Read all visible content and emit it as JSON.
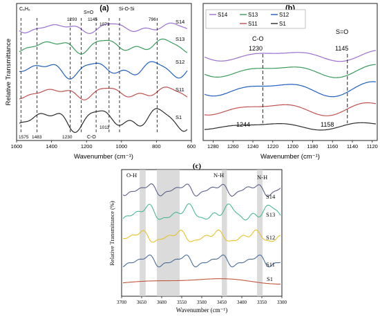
{
  "colors": {
    "S1": "#2b2b2b",
    "S11": "#c0504d",
    "S12": "#1f5fbf",
    "S13": "#3a9a5b",
    "S14": "#9a6fd0",
    "c_S1": "#c1573f",
    "c_S11": "#4a6b9a",
    "c_S12": "#e8c229",
    "c_S13": "#4ab894",
    "c_S14": "#5b5f8a",
    "band": "#cfcfcf"
  },
  "chart_data": [
    {
      "id": "a",
      "type": "line",
      "panel_label": "(a)",
      "xlabel": "Wavenumber (cm⁻¹)",
      "ylabel": "Relative Transmittance",
      "xlim": [
        1600,
        600
      ],
      "x_reversed": true,
      "x_ticks": [
        1600,
        1400,
        1200,
        1000,
        800,
        600
      ],
      "series": [
        {
          "name": "S1",
          "color_key": "S1"
        },
        {
          "name": "S11",
          "color_key": "S11"
        },
        {
          "name": "S12",
          "color_key": "S12"
        },
        {
          "name": "S13",
          "color_key": "S13"
        },
        {
          "name": "S14",
          "color_key": "S14"
        }
      ],
      "dashed_lines": [
        1575,
        1483,
        1293,
        1230,
        1145,
        1071,
        1011,
        796
      ],
      "annotations_top": [
        "C₆H₆",
        "1293",
        "S=O",
        "1145",
        "1071",
        "Si-O-Si",
        "796"
      ],
      "annotations_bottom": [
        "1575",
        "1483",
        "1230",
        "C-O",
        "1011"
      ]
    },
    {
      "id": "b",
      "type": "line",
      "panel_label": "(b)",
      "xlabel": "Wavenumber (cm⁻¹)",
      "xlim": [
        1290,
        1115
      ],
      "x_reversed": true,
      "x_ticks": [
        1280,
        1260,
        1240,
        1220,
        1200,
        1180,
        1160,
        1140,
        1120
      ],
      "legend": [
        "S14",
        "S13",
        "S12",
        "S11",
        "S1"
      ],
      "legend_position": "top-left",
      "dashed_lines": [
        1230,
        1145
      ],
      "annotations": [
        "C-O",
        "1230",
        "S=O",
        "1145",
        "1244",
        "1158"
      ]
    },
    {
      "id": "c",
      "type": "line",
      "panel_label": "(c)",
      "xlabel": "Wavenumber (cm⁻¹)",
      "ylabel": "Relative Transmittance (%)",
      "xlim": [
        3700,
        3300
      ],
      "x_reversed": true,
      "x_ticks": [
        3700,
        3650,
        3600,
        3550,
        3500,
        3450,
        3400,
        3350,
        3300
      ],
      "band_labels": [
        "O-H",
        "N-H",
        "N-H"
      ],
      "bands": [
        [
          3655,
          3640
        ],
        [
          3612,
          3555
        ],
        [
          3450,
          3437
        ],
        [
          3362,
          3348
        ]
      ],
      "series_labels": [
        "S14",
        "S13",
        "S12",
        "S11",
        "S1"
      ]
    }
  ]
}
